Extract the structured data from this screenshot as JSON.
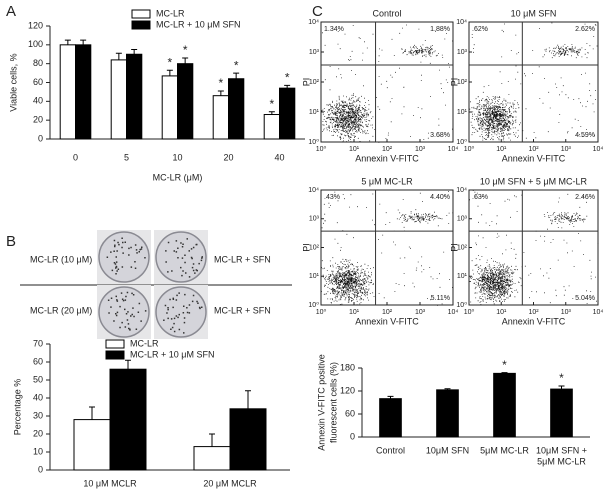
{
  "panel_letters": [
    "A",
    "B",
    "C"
  ],
  "colony_labels": [
    "MC-LR (10 μM)",
    "MC-LR + SFN",
    "MC-LR (20 μM)",
    "MC-LR + SFN"
  ],
  "chart_data": [
    {
      "type": "bar",
      "xlabel": "MC-LR (μM)",
      "ylabel": "Viable cells, %",
      "categories": [
        "0",
        "5",
        "10",
        "20",
        "40"
      ],
      "series": [
        {
          "name": "MC-LR",
          "color": "#ffffff",
          "values": [
            100,
            84,
            67,
            46,
            26
          ],
          "errors": [
            5,
            7,
            6,
            5,
            3
          ],
          "significant": [
            null,
            null,
            "*",
            "*",
            "*"
          ]
        },
        {
          "name": "MC-LR + 10 μM SFN",
          "color": "#000000",
          "values": [
            100,
            90,
            80,
            64,
            54
          ],
          "errors": [
            5,
            5,
            6,
            6,
            3
          ],
          "significant": [
            null,
            null,
            "*",
            "*",
            "*"
          ]
        }
      ],
      "ylim": [
        0,
        120
      ],
      "yticks": [
        0,
        20,
        40,
        60,
        80,
        100,
        120
      ]
    },
    {
      "type": "bar",
      "ylabel": "Percentage %",
      "categories": [
        "10 μM MCLR",
        "20 μM MCLR"
      ],
      "series": [
        {
          "name": "MC-LR",
          "color": "#ffffff",
          "values": [
            28,
            13
          ],
          "errors": [
            7,
            7
          ]
        },
        {
          "name": "MC-LR + 10 μM SFN",
          "color": "#000000",
          "values": [
            56,
            34
          ],
          "errors": [
            5,
            10
          ]
        }
      ],
      "ylim": [
        0,
        70
      ],
      "yticks": [
        0,
        10,
        20,
        30,
        40,
        50,
        60,
        70
      ]
    },
    {
      "type": "scatter",
      "title": "Control",
      "xlabel": "Annexin V-FITC",
      "ylabel": "PI",
      "log_scale": true,
      "xlim": [
        1,
        10000
      ],
      "ylim": [
        1,
        10000
      ],
      "xticks": [
        {
          "value": 1,
          "label": "10⁰"
        },
        {
          "value": 10,
          "label": "10¹"
        },
        {
          "value": 100,
          "label": "10²"
        },
        {
          "value": 1000,
          "label": "10³"
        },
        {
          "value": 10000,
          "label": "10⁴"
        }
      ],
      "yticks": [
        {
          "value": 1,
          "label": "10⁰"
        },
        {
          "value": 10,
          "label": "10¹"
        },
        {
          "value": 100,
          "label": "10²"
        },
        {
          "value": 1000,
          "label": "10³"
        },
        {
          "value": 10000,
          "label": "10⁴"
        }
      ],
      "quadrant_x": 45,
      "quadrant_y": 370,
      "quadrant_labels": [
        "1.34%",
        "1.88%",
        "3.68%"
      ]
    },
    {
      "type": "scatter",
      "title": "10 μM SFN",
      "xlabel": "Annexin V-FITC",
      "ylabel": "PI",
      "log_scale": true,
      "xlim": [
        1,
        10000
      ],
      "ylim": [
        1,
        10000
      ],
      "xticks": [
        {
          "value": 1,
          "label": "10⁰"
        },
        {
          "value": 10,
          "label": "10¹"
        },
        {
          "value": 100,
          "label": "10²"
        },
        {
          "value": 1000,
          "label": "10³"
        },
        {
          "value": 10000,
          "label": "10⁴"
        }
      ],
      "yticks": [
        {
          "value": 1,
          "label": "10⁰"
        },
        {
          "value": 10,
          "label": "10¹"
        },
        {
          "value": 100,
          "label": "10²"
        },
        {
          "value": 1000,
          "label": "10³"
        },
        {
          "value": 10000,
          "label": "10⁴"
        }
      ],
      "quadrant_x": 45,
      "quadrant_y": 370,
      "quadrant_labels": [
        ".62%",
        "2.62%",
        "4.59%"
      ]
    },
    {
      "type": "scatter",
      "title": "5 μM MC-LR",
      "xlabel": "Annexin V-FITC",
      "ylabel": "PI",
      "log_scale": true,
      "xlim": [
        1,
        10000
      ],
      "ylim": [
        1,
        10000
      ],
      "xticks": [
        {
          "value": 1,
          "label": "10⁰"
        },
        {
          "value": 10,
          "label": "10¹"
        },
        {
          "value": 100,
          "label": "10²"
        },
        {
          "value": 1000,
          "label": "10³"
        },
        {
          "value": 10000,
          "label": "10⁴"
        }
      ],
      "yticks": [
        {
          "value": 1,
          "label": "10⁰"
        },
        {
          "value": 10,
          "label": "10¹"
        },
        {
          "value": 100,
          "label": "10²"
        },
        {
          "value": 1000,
          "label": "10³"
        },
        {
          "value": 10000,
          "label": "10⁴"
        }
      ],
      "quadrant_x": 45,
      "quadrant_y": 370,
      "quadrant_labels": [
        ".43%",
        "4.40%",
        "5.11%"
      ]
    },
    {
      "type": "scatter",
      "title": "10 μM SFN + 5 μM MC-LR",
      "xlabel": "Annexin V-FITC",
      "ylabel": "PI",
      "log_scale": true,
      "xlim": [
        1,
        10000
      ],
      "ylim": [
        1,
        10000
      ],
      "xticks": [
        {
          "value": 1,
          "label": "10⁰"
        },
        {
          "value": 10,
          "label": "10¹"
        },
        {
          "value": 100,
          "label": "10²"
        },
        {
          "value": 1000,
          "label": "10³"
        },
        {
          "value": 10000,
          "label": "10⁴"
        }
      ],
      "yticks": [
        {
          "value": 1,
          "label": "10⁰"
        },
        {
          "value": 10,
          "label": "10¹"
        },
        {
          "value": 100,
          "label": "10²"
        },
        {
          "value": 1000,
          "label": "10³"
        },
        {
          "value": 10000,
          "label": "10⁴"
        }
      ],
      "quadrant_x": 45,
      "quadrant_y": 370,
      "quadrant_labels": [
        ".63%",
        "2.46%",
        "5.04%"
      ]
    },
    {
      "type": "bar",
      "ylabel": [
        "Annexin V-FITC positive",
        "fluorescent cells (%)"
      ],
      "categories": [
        [
          "Control"
        ],
        [
          "10μM SFN"
        ],
        [
          "5μM MC-LR"
        ],
        [
          "10μM SFN +",
          "5μM MC-LR"
        ]
      ],
      "series": [
        {
          "color": "#000000",
          "values": [
            100,
            123,
            166,
            125
          ],
          "errors": [
            6,
            3,
            2,
            8
          ],
          "significant": [
            null,
            null,
            "*",
            "*"
          ]
        }
      ],
      "ylim": [
        0,
        180
      ],
      "yticks": [
        0,
        60,
        120,
        180
      ]
    }
  ]
}
